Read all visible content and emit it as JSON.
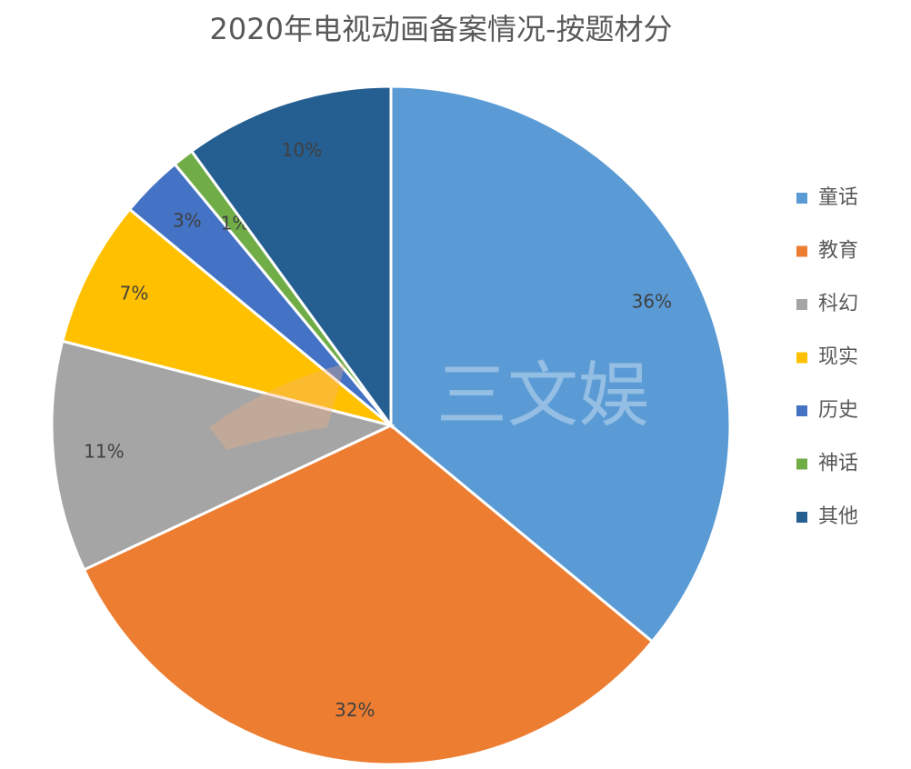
{
  "chart_data": {
    "type": "pie",
    "title": "2020年电视动画备案情况-按题材分",
    "categories": [
      "童话",
      "教育",
      "科幻",
      "现实",
      "历史",
      "神话",
      "其他"
    ],
    "values": [
      36,
      32,
      11,
      7,
      3,
      1,
      10
    ],
    "value_labels": [
      "36%",
      "32%",
      "11%",
      "7%",
      "3%",
      "1%",
      "10%"
    ],
    "colors": [
      "#5b9bd5",
      "#ed7d31",
      "#a5a5a5",
      "#ffc000",
      "#4472c4",
      "#70ad47",
      "#255e91"
    ],
    "legend": "right",
    "watermark": "三文娱"
  }
}
